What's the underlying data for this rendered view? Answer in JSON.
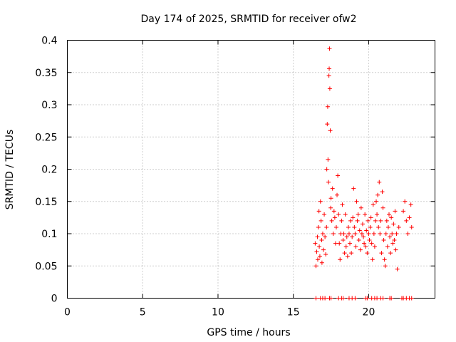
{
  "chart_data": {
    "type": "scatter",
    "title": "Day 174 of 2025, SRMTID for receiver ofw2",
    "xlabel": "GPS time / hours",
    "ylabel": "SRMTID / TECUs",
    "xlim": [
      0,
      24.4
    ],
    "ylim": [
      0,
      0.4
    ],
    "grid": true,
    "marker": "+",
    "color": "#ff0000",
    "xticks": [
      {
        "value": 0,
        "label": "0"
      },
      {
        "value": 5,
        "label": "5"
      },
      {
        "value": 10,
        "label": "10"
      },
      {
        "value": 15,
        "label": "15"
      },
      {
        "value": 20,
        "label": "20"
      }
    ],
    "yticks": [
      {
        "value": 0,
        "label": "0"
      },
      {
        "value": 0.05,
        "label": "0.05"
      },
      {
        "value": 0.1,
        "label": "0.1"
      },
      {
        "value": 0.15,
        "label": "0.15"
      },
      {
        "value": 0.2,
        "label": "0.2"
      },
      {
        "value": 0.25,
        "label": "0.25"
      },
      {
        "value": 0.3,
        "label": "0.3"
      },
      {
        "value": 0.35,
        "label": "0.35"
      },
      {
        "value": 0.4,
        "label": "0.4"
      }
    ],
    "series": [
      {
        "name": "SRMTID",
        "points": [
          [
            16.45,
            0.085
          ],
          [
            16.5,
            0.05
          ],
          [
            16.55,
            0.072
          ],
          [
            16.6,
            0.095
          ],
          [
            16.62,
            0.06
          ],
          [
            16.66,
            0.11
          ],
          [
            16.7,
            0.135
          ],
          [
            16.72,
            0.08
          ],
          [
            16.76,
            0.065
          ],
          [
            16.8,
            0.15
          ],
          [
            16.84,
            0.12
          ],
          [
            16.88,
            0.09
          ],
          [
            16.9,
            0.055
          ],
          [
            16.95,
            0.1
          ],
          [
            17.0,
            0.075
          ],
          [
            17.05,
            0.13
          ],
          [
            17.1,
            0.095
          ],
          [
            17.15,
            0.068
          ],
          [
            17.2,
            0.11
          ],
          [
            17.22,
            0.2
          ],
          [
            17.25,
            0.27
          ],
          [
            17.28,
            0.297
          ],
          [
            17.3,
            0.215
          ],
          [
            17.33,
            0.18
          ],
          [
            17.36,
            0.345
          ],
          [
            17.38,
            0.356
          ],
          [
            17.4,
            0.387
          ],
          [
            17.42,
            0.325
          ],
          [
            17.45,
            0.26
          ],
          [
            17.48,
            0.14
          ],
          [
            17.5,
            0.155
          ],
          [
            17.55,
            0.12
          ],
          [
            17.6,
            0.17
          ],
          [
            17.65,
            0.1
          ],
          [
            17.7,
            0.135
          ],
          [
            17.75,
            0.125
          ],
          [
            17.8,
            0.085
          ],
          [
            17.85,
            0.11
          ],
          [
            17.9,
            0.16
          ],
          [
            17.95,
            0.19
          ],
          [
            18.0,
            0.13
          ],
          [
            18.05,
            0.085
          ],
          [
            18.1,
            0.06
          ],
          [
            18.15,
            0.1
          ],
          [
            18.2,
            0.12
          ],
          [
            18.25,
            0.145
          ],
          [
            18.3,
            0.09
          ],
          [
            18.35,
            0.1
          ],
          [
            18.4,
            0.07
          ],
          [
            18.45,
            0.13
          ],
          [
            18.5,
            0.08
          ],
          [
            18.55,
            0.095
          ],
          [
            18.6,
            0.065
          ],
          [
            18.65,
            0.11
          ],
          [
            18.7,
            0.1
          ],
          [
            18.75,
            0.085
          ],
          [
            18.8,
            0.12
          ],
          [
            18.85,
            0.07
          ],
          [
            18.9,
            0.095
          ],
          [
            18.95,
            0.125
          ],
          [
            19.0,
            0.17
          ],
          [
            19.05,
            0.11
          ],
          [
            19.1,
            0.1
          ],
          [
            19.15,
            0.08
          ],
          [
            19.2,
            0.15
          ],
          [
            19.25,
            0.12
          ],
          [
            19.3,
            0.13
          ],
          [
            19.35,
            0.09
          ],
          [
            19.4,
            0.105
          ],
          [
            19.45,
            0.075
          ],
          [
            19.5,
            0.14
          ],
          [
            19.55,
            0.1
          ],
          [
            19.6,
            0.115
          ],
          [
            19.65,
            0.095
          ],
          [
            19.7,
            0.085
          ],
          [
            19.75,
            0.13
          ],
          [
            19.8,
            0.08
          ],
          [
            19.85,
            0.105
          ],
          [
            19.9,
            0.07
          ],
          [
            19.95,
            0.12
          ],
          [
            20.0,
            0.1
          ],
          [
            20.05,
            0.09
          ],
          [
            20.1,
            0.11
          ],
          [
            20.15,
            0.125
          ],
          [
            20.2,
            0.085
          ],
          [
            20.25,
            0.06
          ],
          [
            20.3,
            0.145
          ],
          [
            20.35,
            0.1
          ],
          [
            20.4,
            0.08
          ],
          [
            20.45,
            0.12
          ],
          [
            20.5,
            0.15
          ],
          [
            20.55,
            0.13
          ],
          [
            20.6,
            0.16
          ],
          [
            20.65,
            0.11
          ],
          [
            20.7,
            0.18
          ],
          [
            20.75,
            0.1
          ],
          [
            20.8,
            0.12
          ],
          [
            20.85,
            0.07
          ],
          [
            20.9,
            0.165
          ],
          [
            20.95,
            0.14
          ],
          [
            21.0,
            0.09
          ],
          [
            21.05,
            0.06
          ],
          [
            21.1,
            0.05
          ],
          [
            21.15,
            0.1
          ],
          [
            21.2,
            0.12
          ],
          [
            21.25,
            0.08
          ],
          [
            21.3,
            0.11
          ],
          [
            21.35,
            0.13
          ],
          [
            21.4,
            0.095
          ],
          [
            21.45,
            0.07
          ],
          [
            21.5,
            0.125
          ],
          [
            21.55,
            0.1
          ],
          [
            21.6,
            0.085
          ],
          [
            21.65,
            0.115
          ],
          [
            21.7,
            0.09
          ],
          [
            21.75,
            0.135
          ],
          [
            21.8,
            0.075
          ],
          [
            21.85,
            0.1
          ],
          [
            21.9,
            0.045
          ],
          [
            22.0,
            0.11
          ],
          [
            22.3,
            0.135
          ],
          [
            22.4,
            0.15
          ],
          [
            22.5,
            0.12
          ],
          [
            22.6,
            0.1
          ],
          [
            22.7,
            0.125
          ],
          [
            22.8,
            0.145
          ],
          [
            22.85,
            0.11
          ],
          [
            16.5,
            0.0
          ],
          [
            16.8,
            0.0
          ],
          [
            16.95,
            0.0
          ],
          [
            17.1,
            0.0
          ],
          [
            17.4,
            0.0
          ],
          [
            17.5,
            0.0
          ],
          [
            18.0,
            0.0
          ],
          [
            18.2,
            0.0
          ],
          [
            18.3,
            0.0
          ],
          [
            18.7,
            0.0
          ],
          [
            18.9,
            0.0
          ],
          [
            19.1,
            0.0
          ],
          [
            19.8,
            0.0
          ],
          [
            19.9,
            0.0
          ],
          [
            20.2,
            0.0
          ],
          [
            20.4,
            0.0
          ],
          [
            20.55,
            0.0
          ],
          [
            20.8,
            0.0
          ],
          [
            20.95,
            0.0
          ],
          [
            21.4,
            0.0
          ],
          [
            21.5,
            0.0
          ],
          [
            22.2,
            0.0
          ],
          [
            22.3,
            0.0
          ],
          [
            22.5,
            0.0
          ],
          [
            22.7,
            0.0
          ],
          [
            22.85,
            0.0
          ]
        ]
      }
    ]
  }
}
